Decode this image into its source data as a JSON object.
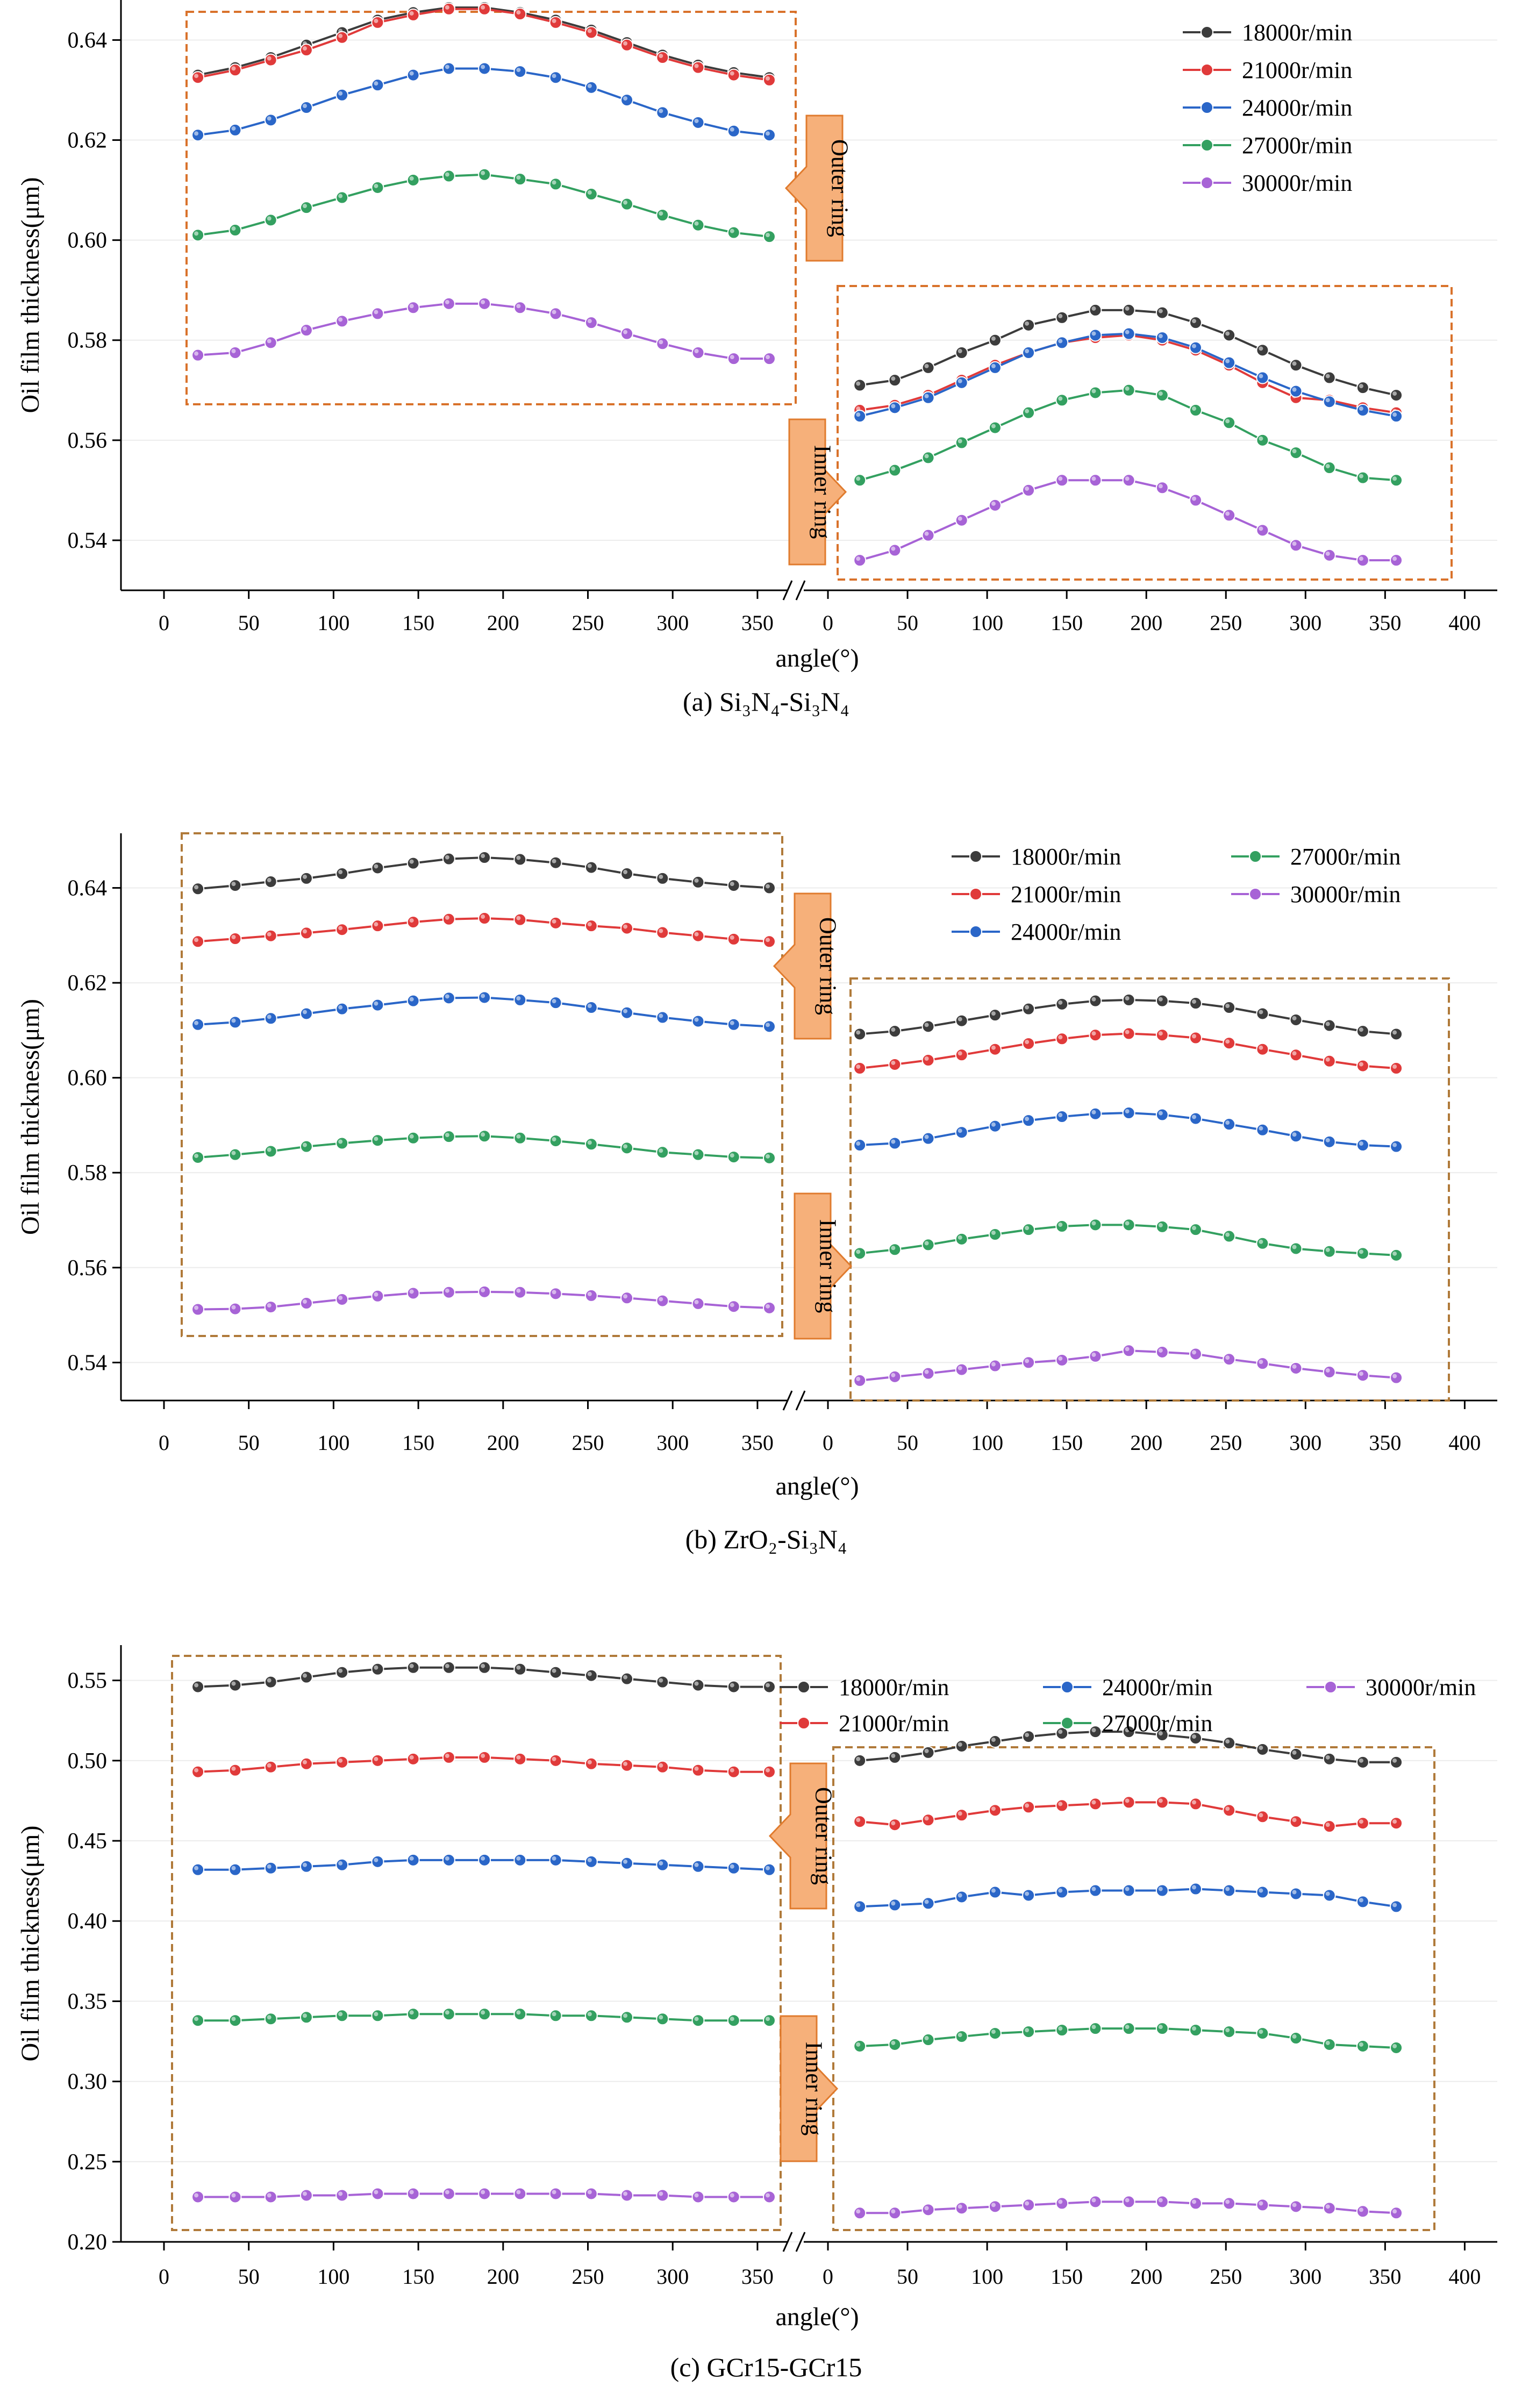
{
  "chart_data": [
    {
      "type": "line",
      "caption": "(a) Si₃N₄-Si₃N₄",
      "xlabel": "angle(°)",
      "ylabel": "Oil film thickness(μm)",
      "ylim": [
        0.53,
        0.648
      ],
      "yticks": [
        0.54,
        0.56,
        0.58,
        0.6,
        0.62,
        0.64
      ],
      "ytick_labels": [
        "0.54",
        "0.56",
        "0.58",
        "0.60",
        "0.62",
        "0.64"
      ],
      "xticks_outer": [
        0,
        50,
        100,
        150,
        200,
        250,
        300,
        350
      ],
      "xticks_inner": [
        0,
        50,
        100,
        150,
        200,
        250,
        300,
        350,
        400
      ],
      "outer_label": "Outer ring",
      "inner_label": "Inner ring",
      "x": [
        20,
        42,
        63,
        84,
        105,
        126,
        147,
        168,
        189,
        210,
        231,
        252,
        273,
        294,
        315,
        336,
        357
      ],
      "series": [
        {
          "name": "18000r/min",
          "color": "#3c3c3c",
          "outer": [
            0.633,
            0.6345,
            0.6365,
            0.639,
            0.6415,
            0.644,
            0.6455,
            0.6465,
            0.6465,
            0.6455,
            0.644,
            0.642,
            0.6395,
            0.637,
            0.635,
            0.6335,
            0.6325
          ],
          "inner": [
            0.571,
            0.572,
            0.5745,
            0.5775,
            0.58,
            0.583,
            0.5845,
            0.586,
            0.586,
            0.5855,
            0.5835,
            0.581,
            0.578,
            0.575,
            0.5725,
            0.5705,
            0.569
          ]
        },
        {
          "name": "21000r/min",
          "color": "#e03a3a",
          "outer": [
            0.6325,
            0.634,
            0.636,
            0.638,
            0.6405,
            0.6435,
            0.645,
            0.6462,
            0.6462,
            0.6452,
            0.6435,
            0.6415,
            0.639,
            0.6365,
            0.6345,
            0.633,
            0.632
          ],
          "inner": [
            0.566,
            0.567,
            0.569,
            0.572,
            0.575,
            0.5775,
            0.5795,
            0.5805,
            0.581,
            0.58,
            0.578,
            0.575,
            0.5715,
            0.5685,
            0.568,
            0.5665,
            0.5655
          ]
        },
        {
          "name": "24000r/min",
          "color": "#2a66c8",
          "outer": [
            0.621,
            0.622,
            0.624,
            0.6265,
            0.629,
            0.631,
            0.633,
            0.6343,
            0.6343,
            0.6337,
            0.6325,
            0.6305,
            0.628,
            0.6255,
            0.6235,
            0.6218,
            0.621
          ],
          "inner": [
            0.5648,
            0.5665,
            0.5685,
            0.5715,
            0.5745,
            0.5775,
            0.5795,
            0.581,
            0.5813,
            0.5805,
            0.5785,
            0.5755,
            0.5725,
            0.5698,
            0.5677,
            0.566,
            0.5648
          ]
        },
        {
          "name": "27000r/min",
          "color": "#33a060",
          "outer": [
            0.601,
            0.602,
            0.604,
            0.6065,
            0.6085,
            0.6105,
            0.612,
            0.6128,
            0.6131,
            0.6122,
            0.6112,
            0.6092,
            0.6072,
            0.605,
            0.603,
            0.6015,
            0.6007
          ],
          "inner": [
            0.552,
            0.554,
            0.5565,
            0.5595,
            0.5625,
            0.5655,
            0.568,
            0.5695,
            0.57,
            0.569,
            0.566,
            0.5635,
            0.56,
            0.5575,
            0.5545,
            0.5525,
            0.552
          ]
        },
        {
          "name": "30000r/min",
          "color": "#a763d6",
          "outer": [
            0.577,
            0.5775,
            0.5795,
            0.582,
            0.5838,
            0.5853,
            0.5865,
            0.5873,
            0.5873,
            0.5865,
            0.5853,
            0.5835,
            0.5813,
            0.5793,
            0.5775,
            0.5763,
            0.5763
          ],
          "inner": [
            0.536,
            0.538,
            0.541,
            0.544,
            0.547,
            0.55,
            0.552,
            0.552,
            0.552,
            0.5505,
            0.548,
            0.545,
            0.542,
            0.539,
            0.537,
            0.536,
            0.536
          ]
        }
      ]
    },
    {
      "type": "line",
      "caption": "(b) ZrO₂-Si₃N₄",
      "xlabel": "angle(°)",
      "ylabel": "Oil film thickness(μm)",
      "ylim": [
        0.532,
        0.6515
      ],
      "yticks": [
        0.54,
        0.56,
        0.58,
        0.6,
        0.62,
        0.64
      ],
      "ytick_labels": [
        "0.54",
        "0.56",
        "0.58",
        "0.60",
        "0.62",
        "0.64"
      ],
      "xticks_outer": [
        0,
        50,
        100,
        150,
        200,
        250,
        300,
        350
      ],
      "xticks_inner": [
        0,
        50,
        100,
        150,
        200,
        250,
        300,
        350,
        400
      ],
      "outer_label": "Outer ring",
      "inner_label": "Inner ring",
      "x": [
        20,
        42,
        63,
        84,
        105,
        126,
        147,
        168,
        189,
        210,
        231,
        252,
        273,
        294,
        315,
        336,
        357
      ],
      "series": [
        {
          "name": "18000r/min",
          "color": "#3c3c3c",
          "outer": [
            0.6398,
            0.6405,
            0.6413,
            0.642,
            0.643,
            0.6442,
            0.6452,
            0.6461,
            0.6464,
            0.646,
            0.6453,
            0.6443,
            0.643,
            0.642,
            0.6412,
            0.6405,
            0.64
          ],
          "inner": [
            0.6092,
            0.6098,
            0.6108,
            0.612,
            0.6132,
            0.6145,
            0.6155,
            0.6162,
            0.6164,
            0.6162,
            0.6157,
            0.6148,
            0.6135,
            0.6122,
            0.611,
            0.6098,
            0.6092
          ]
        },
        {
          "name": "21000r/min",
          "color": "#e03a3a",
          "outer": [
            0.6287,
            0.6293,
            0.6299,
            0.6305,
            0.6312,
            0.632,
            0.6328,
            0.6334,
            0.6336,
            0.6333,
            0.6326,
            0.632,
            0.6315,
            0.6306,
            0.6299,
            0.6292,
            0.6287
          ],
          "inner": [
            0.602,
            0.6028,
            0.6037,
            0.6048,
            0.606,
            0.6072,
            0.6082,
            0.609,
            0.6093,
            0.609,
            0.6084,
            0.6073,
            0.606,
            0.6048,
            0.6035,
            0.6025,
            0.602
          ]
        },
        {
          "name": "24000r/min",
          "color": "#2a66c8",
          "outer": [
            0.6112,
            0.6117,
            0.6125,
            0.6135,
            0.6145,
            0.6153,
            0.6162,
            0.6168,
            0.6169,
            0.6164,
            0.6158,
            0.6148,
            0.6137,
            0.6127,
            0.6119,
            0.6112,
            0.6108
          ],
          "inner": [
            0.5858,
            0.5862,
            0.5872,
            0.5885,
            0.5898,
            0.591,
            0.5918,
            0.5924,
            0.5926,
            0.5922,
            0.5914,
            0.5902,
            0.589,
            0.5877,
            0.5865,
            0.5858,
            0.5855
          ]
        },
        {
          "name": "27000r/min",
          "color": "#33a060",
          "outer": [
            0.5832,
            0.5838,
            0.5845,
            0.5855,
            0.5862,
            0.5868,
            0.5873,
            0.5876,
            0.5877,
            0.5873,
            0.5867,
            0.586,
            0.5852,
            0.5843,
            0.5838,
            0.5833,
            0.5831
          ],
          "inner": [
            0.563,
            0.5638,
            0.5648,
            0.566,
            0.567,
            0.568,
            0.5687,
            0.569,
            0.569,
            0.5686,
            0.568,
            0.5666,
            0.5651,
            0.564,
            0.5634,
            0.563,
            0.5626
          ]
        },
        {
          "name": "30000r/min",
          "color": "#a763d6",
          "outer": [
            0.5512,
            0.5513,
            0.5517,
            0.5525,
            0.5533,
            0.554,
            0.5546,
            0.5548,
            0.5549,
            0.5548,
            0.5545,
            0.5541,
            0.5536,
            0.553,
            0.5524,
            0.5518,
            0.5515
          ],
          "inner": [
            0.5362,
            0.537,
            0.5377,
            0.5385,
            0.5393,
            0.54,
            0.5405,
            0.5413,
            0.5425,
            0.5422,
            0.5418,
            0.5407,
            0.5398,
            0.5388,
            0.538,
            0.5373,
            0.5368
          ]
        }
      ]
    },
    {
      "type": "line",
      "caption": "(c) GCr15-GCr15",
      "xlabel": "angle(°)",
      "ylabel": "Oil film thickness(μm)",
      "ylim": [
        0.2,
        0.572
      ],
      "yticks": [
        0.2,
        0.25,
        0.3,
        0.35,
        0.4,
        0.45,
        0.5,
        0.55
      ],
      "ytick_labels": [
        "0.20",
        "0.25",
        "0.30",
        "0.35",
        "0.40",
        "0.45",
        "0.50",
        "0.55"
      ],
      "xticks_outer": [
        0,
        50,
        100,
        150,
        200,
        250,
        300,
        350
      ],
      "xticks_inner": [
        0,
        50,
        100,
        150,
        200,
        250,
        300,
        350,
        400
      ],
      "outer_label": "Outer ring",
      "inner_label": "Inner ring",
      "x": [
        20,
        42,
        63,
        84,
        105,
        126,
        147,
        168,
        189,
        210,
        231,
        252,
        273,
        294,
        315,
        336,
        357
      ],
      "series": [
        {
          "name": "18000r/min",
          "color": "#3c3c3c",
          "outer": [
            0.546,
            0.547,
            0.549,
            0.552,
            0.555,
            0.557,
            0.558,
            0.558,
            0.558,
            0.557,
            0.555,
            0.553,
            0.551,
            0.549,
            0.547,
            0.546,
            0.546
          ],
          "inner": [
            0.5,
            0.502,
            0.505,
            0.509,
            0.512,
            0.515,
            0.517,
            0.518,
            0.518,
            0.516,
            0.514,
            0.511,
            0.507,
            0.504,
            0.501,
            0.499,
            0.499
          ]
        },
        {
          "name": "21000r/min",
          "color": "#e03a3a",
          "outer": [
            0.493,
            0.494,
            0.496,
            0.498,
            0.499,
            0.5,
            0.501,
            0.502,
            0.502,
            0.501,
            0.5,
            0.498,
            0.497,
            0.496,
            0.494,
            0.493,
            0.493
          ],
          "inner": [
            0.462,
            0.46,
            0.463,
            0.466,
            0.469,
            0.471,
            0.472,
            0.473,
            0.474,
            0.474,
            0.473,
            0.469,
            0.465,
            0.462,
            0.459,
            0.461,
            0.461
          ]
        },
        {
          "name": "24000r/min",
          "color": "#2a66c8",
          "outer": [
            0.432,
            0.432,
            0.433,
            0.434,
            0.435,
            0.437,
            0.438,
            0.438,
            0.438,
            0.438,
            0.438,
            0.437,
            0.436,
            0.435,
            0.434,
            0.433,
            0.432
          ],
          "inner": [
            0.409,
            0.41,
            0.411,
            0.415,
            0.418,
            0.416,
            0.418,
            0.419,
            0.419,
            0.419,
            0.42,
            0.419,
            0.418,
            0.417,
            0.416,
            0.412,
            0.409
          ]
        },
        {
          "name": "27000r/min",
          "color": "#33a060",
          "outer": [
            0.338,
            0.338,
            0.339,
            0.34,
            0.341,
            0.341,
            0.342,
            0.342,
            0.342,
            0.342,
            0.341,
            0.341,
            0.34,
            0.339,
            0.338,
            0.338,
            0.338
          ],
          "inner": [
            0.322,
            0.323,
            0.326,
            0.328,
            0.33,
            0.331,
            0.332,
            0.333,
            0.333,
            0.333,
            0.332,
            0.331,
            0.33,
            0.327,
            0.323,
            0.322,
            0.321
          ]
        },
        {
          "name": "30000r/min",
          "color": "#a763d6",
          "outer": [
            0.228,
            0.228,
            0.228,
            0.229,
            0.229,
            0.23,
            0.23,
            0.23,
            0.23,
            0.23,
            0.23,
            0.23,
            0.229,
            0.229,
            0.228,
            0.228,
            0.228
          ],
          "inner": [
            0.218,
            0.218,
            0.22,
            0.221,
            0.222,
            0.223,
            0.224,
            0.225,
            0.225,
            0.225,
            0.224,
            0.224,
            0.223,
            0.222,
            0.221,
            0.219,
            0.218
          ]
        }
      ]
    }
  ]
}
